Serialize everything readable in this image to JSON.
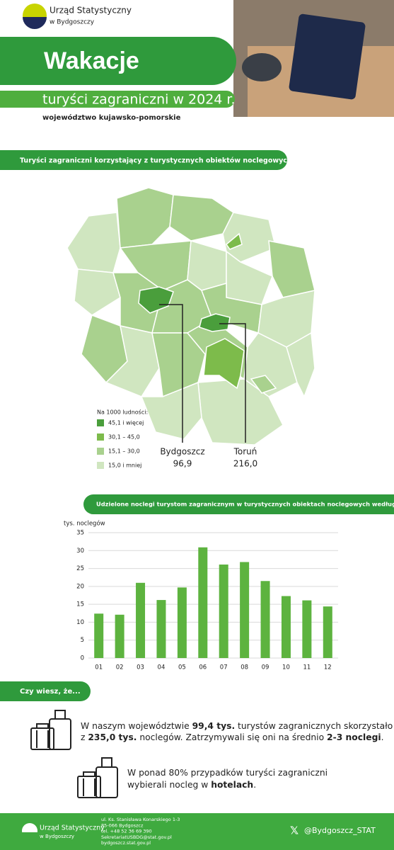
{
  "header": {
    "logo_line1": "Urząd Statystyczny",
    "logo_line2": "w Bydgoszczy",
    "title": "Wakacje",
    "subtitle": "turyści zagraniczni w 2024 r.",
    "region": "województwo kujawsko-pomorskie"
  },
  "map": {
    "heading": "Turyści zagraniczni korzystający z turystycznych obiektów noclegowych",
    "legend_title": "Na 1000 ludności:",
    "legend": [
      {
        "label": "45,1 i więcej",
        "color": "#4a9e3c"
      },
      {
        "label": "30,1 – 45,0",
        "color": "#7dbb4b"
      },
      {
        "label": "15,1 – 30,0",
        "color": "#a9d18e"
      },
      {
        "label": "15,0 i mniej",
        "color": "#d0e6c0"
      }
    ],
    "cities": [
      {
        "name": "Bydgoszcz",
        "value": "96,9"
      },
      {
        "name": "Toruń",
        "value": "216,0"
      }
    ]
  },
  "chart_data": {
    "type": "bar",
    "title": "Udzielone noclegi turystom zagranicznym w turystycznych obiektach noclegowych według miesięcy",
    "y_label": "tys. noclegów",
    "categories": [
      "01",
      "02",
      "03",
      "04",
      "05",
      "06",
      "07",
      "08",
      "09",
      "10",
      "11",
      "12"
    ],
    "values": [
      12.4,
      12.1,
      21.0,
      16.2,
      19.7,
      30.9,
      26.1,
      26.8,
      21.5,
      17.3,
      16.1,
      14.4
    ],
    "color": "#5db33f",
    "ylim": [
      0,
      35
    ],
    "yticks": [
      0,
      5,
      10,
      15,
      20,
      25,
      30,
      35
    ],
    "grid": true
  },
  "facts": {
    "heading": "Czy wiesz, że...",
    "items": [
      {
        "lines": [
          [
            "W naszym województwie ",
            "99,4 tys.",
            " turystów zagranicznych skorzystało"
          ],
          [
            "z ",
            "235,0 tys.",
            " noclegów. Zatrzymywali się oni na średnio ",
            "2-3 noclegi",
            "."
          ]
        ]
      },
      {
        "lines": [
          [
            "W ponad 80% przypadków turyści zagraniczni"
          ],
          [
            "wybierali nocleg w ",
            "hotelach",
            "."
          ]
        ]
      }
    ]
  },
  "footer": {
    "logo_line1": "Urząd Statystyczny",
    "logo_line2": "w Bydgoszczy",
    "address": [
      "ul. Ks. Stanisława Konarskiego 1-3",
      "85-066 Bydgoszcz",
      "tel. +48 52 36 69 390",
      "SekretariatUSBDG@stat.gov.pl",
      "bydgoszcz.stat.gov.pl"
    ],
    "social": "@Bydgoszcz_STAT"
  }
}
